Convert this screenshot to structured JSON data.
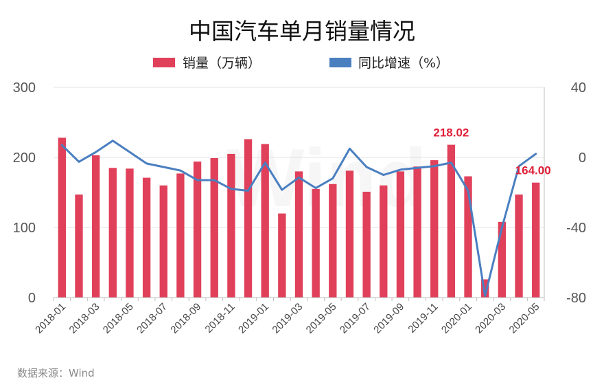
{
  "chart_data": {
    "type": "bar+line",
    "title": "中国汽车单月销量情况",
    "categories": [
      "2018-01",
      "2018-02",
      "2018-03",
      "2018-04",
      "2018-05",
      "2018-06",
      "2018-07",
      "2018-08",
      "2018-09",
      "2018-10",
      "2018-11",
      "2018-12",
      "2019-01",
      "2019-02",
      "2019-03",
      "2019-04",
      "2019-05",
      "2019-06",
      "2019-07",
      "2019-08",
      "2019-09",
      "2019-10",
      "2019-11",
      "2019-12",
      "2020-01",
      "2020-02",
      "2020-03",
      "2020-04",
      "2020-05"
    ],
    "x_tick_labels": [
      "2018-01",
      "2018-03",
      "2018-05",
      "2018-07",
      "2018-09",
      "2018-11",
      "2019-01",
      "2019-03",
      "2019-05",
      "2019-07",
      "2019-09",
      "2019-11",
      "2020-01",
      "2020-03",
      "2020-05"
    ],
    "series": [
      {
        "name": "销量（万辆）",
        "type": "bar",
        "axis": "left",
        "color": "#e0405a",
        "values": [
          228,
          147,
          203,
          185,
          184,
          171,
          160,
          177,
          194,
          199,
          205,
          226,
          219,
          120,
          180,
          155,
          162,
          181,
          151,
          160,
          180,
          187,
          196,
          218.02,
          173,
          26,
          108,
          147,
          164.0
        ]
      },
      {
        "name": "同比增速（%）",
        "type": "line",
        "axis": "right",
        "color": "#4a7fc0",
        "values": [
          7,
          -2.5,
          3,
          9.5,
          3,
          -3.5,
          -5.5,
          -7.5,
          -13,
          -13,
          -18,
          -19,
          -3,
          -18.5,
          -11.5,
          -17.5,
          -12,
          5,
          -5.5,
          -10,
          -7,
          -6,
          -5,
          -3,
          -19,
          -79,
          -40,
          -5,
          2
        ]
      }
    ],
    "y_left": {
      "min": 0,
      "max": 300,
      "ticks": [
        0,
        100,
        200,
        300
      ]
    },
    "y_right": {
      "min": -80,
      "max": 40,
      "ticks": [
        -80,
        -40,
        0,
        40
      ]
    },
    "annotations": [
      {
        "category": "2019-12",
        "text": "218.02"
      },
      {
        "category": "2020-05",
        "text": "164.00"
      }
    ],
    "legend_position": "top-center",
    "grid": "horizontal",
    "watermark": "Wind",
    "source": "数据来源：Wind"
  }
}
